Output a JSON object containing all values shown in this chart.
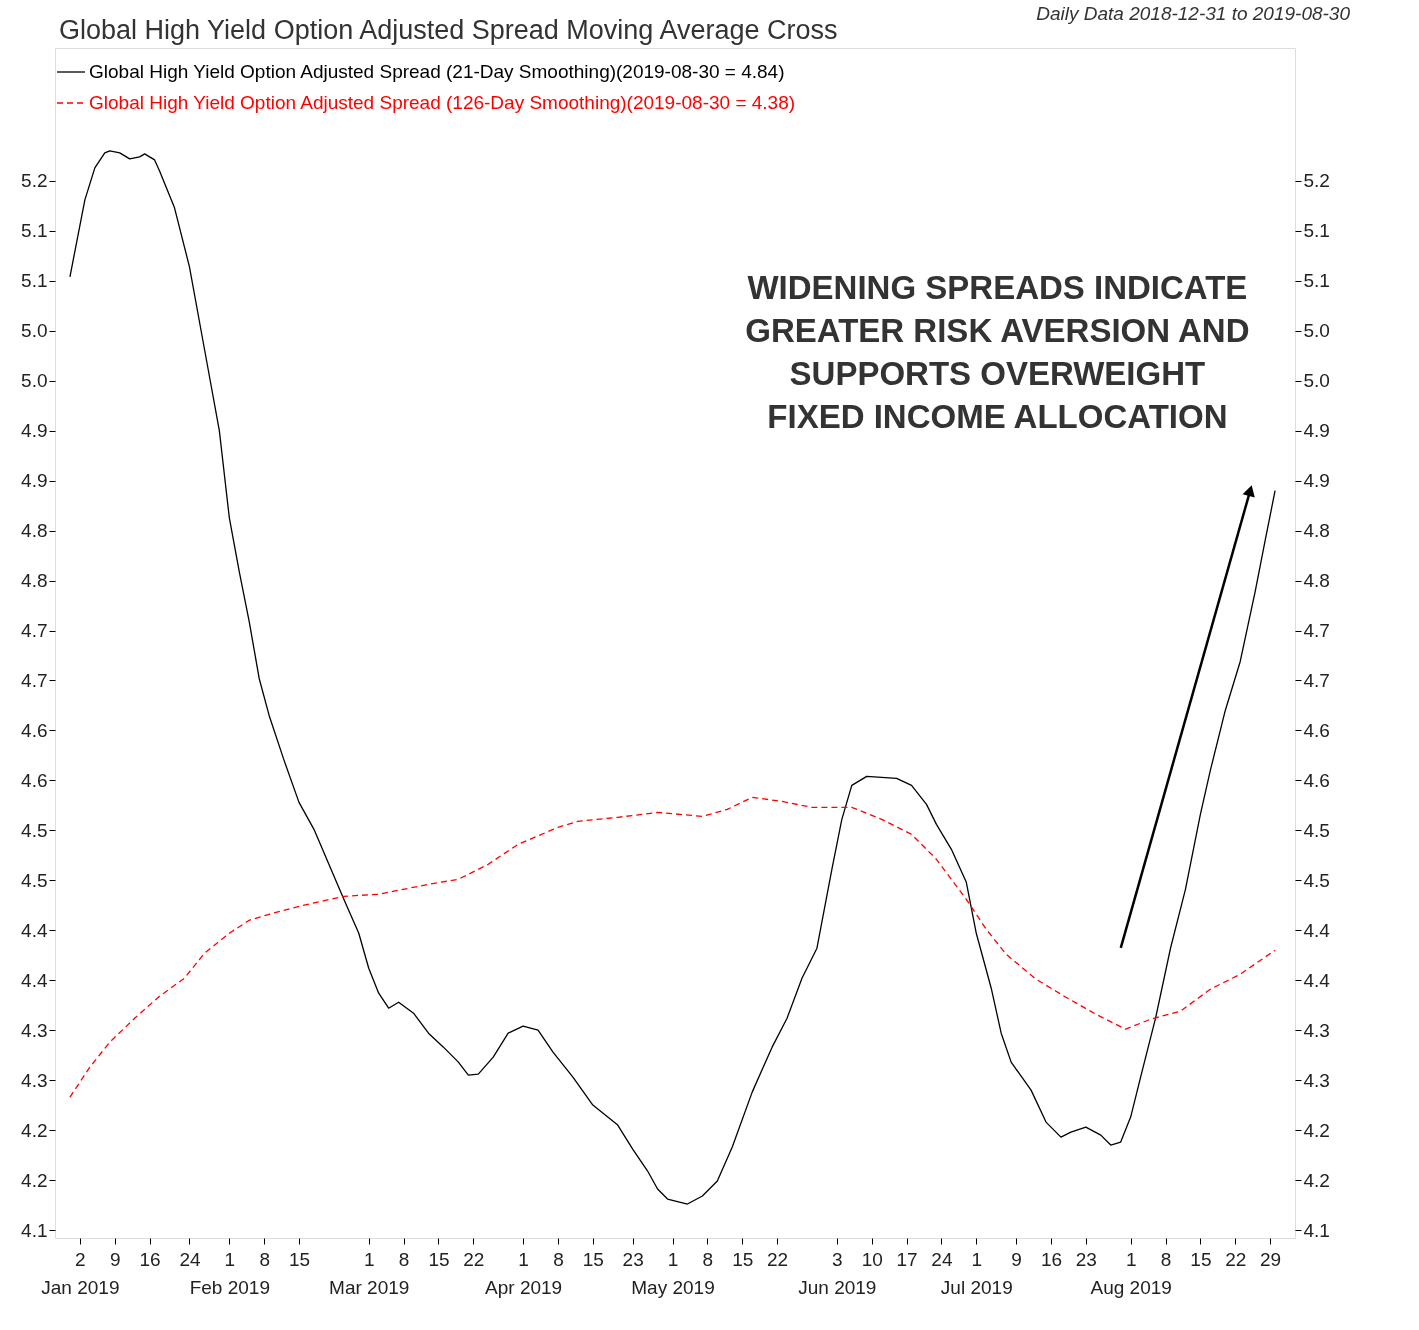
{
  "chart_data": {
    "type": "line",
    "title": "Global High Yield Option Adjusted Spread Moving Average Cross",
    "subtitle": "Daily Data 2018-12-31 to 2019-08-30",
    "xlim": [
      "2018-12-28",
      "2019-09-03"
    ],
    "ylim": [
      4.092,
      5.283
    ],
    "xticks": [
      {
        "value": "2019-01-02",
        "label": "2\nJan 2019"
      },
      {
        "value": "2019-01-09",
        "label": "9"
      },
      {
        "value": "2019-01-16",
        "label": "16"
      },
      {
        "value": "2019-01-24",
        "label": "24"
      },
      {
        "value": "2019-02-01",
        "label": "1\nFeb 2019"
      },
      {
        "value": "2019-02-08",
        "label": "8"
      },
      {
        "value": "2019-02-15",
        "label": "15"
      },
      {
        "value": "2019-03-01",
        "label": "1\nMar 2019"
      },
      {
        "value": "2019-03-08",
        "label": "8"
      },
      {
        "value": "2019-03-15",
        "label": "15"
      },
      {
        "value": "2019-03-22",
        "label": "22"
      },
      {
        "value": "2019-04-01",
        "label": "1\nApr 2019"
      },
      {
        "value": "2019-04-08",
        "label": "8"
      },
      {
        "value": "2019-04-15",
        "label": "15"
      },
      {
        "value": "2019-04-23",
        "label": "23"
      },
      {
        "value": "2019-05-01",
        "label": "1\nMay 2019"
      },
      {
        "value": "2019-05-08",
        "label": "8"
      },
      {
        "value": "2019-05-15",
        "label": "15"
      },
      {
        "value": "2019-05-22",
        "label": "22"
      },
      {
        "value": "2019-06-03",
        "label": "3\nJun 2019"
      },
      {
        "value": "2019-06-10",
        "label": "10"
      },
      {
        "value": "2019-06-17",
        "label": "17"
      },
      {
        "value": "2019-06-24",
        "label": "24"
      },
      {
        "value": "2019-07-01",
        "label": "1\nJul 2019"
      },
      {
        "value": "2019-07-09",
        "label": "9"
      },
      {
        "value": "2019-07-16",
        "label": "16"
      },
      {
        "value": "2019-07-23",
        "label": "23"
      },
      {
        "value": "2019-08-01",
        "label": "1\nAug 2019"
      },
      {
        "value": "2019-08-08",
        "label": "8"
      },
      {
        "value": "2019-08-15",
        "label": "15"
      },
      {
        "value": "2019-08-22",
        "label": "22"
      },
      {
        "value": "2019-08-29",
        "label": "29"
      }
    ],
    "yticks": [
      {
        "value": 4.1,
        "label": "4.1"
      },
      {
        "value": 4.15,
        "label": "4.2"
      },
      {
        "value": 4.2,
        "label": "4.2"
      },
      {
        "value": 4.25,
        "label": "4.3"
      },
      {
        "value": 4.3,
        "label": "4.3"
      },
      {
        "value": 4.35,
        "label": "4.4"
      },
      {
        "value": 4.4,
        "label": "4.4"
      },
      {
        "value": 4.45,
        "label": "4.5"
      },
      {
        "value": 4.5,
        "label": "4.5"
      },
      {
        "value": 4.55,
        "label": "4.6"
      },
      {
        "value": 4.6,
        "label": "4.6"
      },
      {
        "value": 4.65,
        "label": "4.7"
      },
      {
        "value": 4.7,
        "label": "4.7"
      },
      {
        "value": 4.75,
        "label": "4.8"
      },
      {
        "value": 4.8,
        "label": "4.8"
      },
      {
        "value": 4.85,
        "label": "4.9"
      },
      {
        "value": 4.9,
        "label": "4.9"
      },
      {
        "value": 4.95,
        "label": "5.0"
      },
      {
        "value": 5.0,
        "label": "5.0"
      },
      {
        "value": 5.05,
        "label": "5.1"
      },
      {
        "value": 5.1,
        "label": "5.1"
      },
      {
        "value": 5.15,
        "label": "5.2"
      }
    ],
    "grid": false,
    "legend": "top left",
    "annotations": [
      "WIDENING SPREADS INDICATE\nGREATER RISK AVERSION AND\nSUPPORTS OVERWEIGHT\nFIXED INCOME ALLOCATION"
    ],
    "series": [
      {
        "name": "Global High Yield Option Adjusted Spread (21-Day Smoothing)(2019-08-30 = 4.84)",
        "color": "#000000",
        "line_style": "solid",
        "x": [
          "2018-12-31",
          "2019-01-03",
          "2019-01-05",
          "2019-01-07",
          "2019-01-08",
          "2019-01-10",
          "2019-01-12",
          "2019-01-14",
          "2019-01-15",
          "2019-01-17",
          "2019-01-18",
          "2019-01-21",
          "2019-01-24",
          "2019-01-27",
          "2019-01-30",
          "2019-02-01",
          "2019-02-03",
          "2019-02-05",
          "2019-02-07",
          "2019-02-09",
          "2019-02-12",
          "2019-02-15",
          "2019-02-18",
          "2019-02-21",
          "2019-02-24",
          "2019-02-27",
          "2019-03-01",
          "2019-03-03",
          "2019-03-05",
          "2019-03-07",
          "2019-03-10",
          "2019-03-13",
          "2019-03-16",
          "2019-03-19",
          "2019-03-21",
          "2019-03-23",
          "2019-03-26",
          "2019-03-29",
          "2019-04-01",
          "2019-04-04",
          "2019-04-07",
          "2019-04-11",
          "2019-04-15",
          "2019-04-20",
          "2019-04-23",
          "2019-04-26",
          "2019-04-28",
          "2019-04-30",
          "2019-05-04",
          "2019-05-07",
          "2019-05-10",
          "2019-05-13",
          "2019-05-17",
          "2019-05-21",
          "2019-05-24",
          "2019-05-27",
          "2019-05-30",
          "2019-06-02",
          "2019-06-04",
          "2019-06-06",
          "2019-06-09",
          "2019-06-12",
          "2019-06-15",
          "2019-06-18",
          "2019-06-21",
          "2019-06-23",
          "2019-06-26",
          "2019-06-29",
          "2019-07-01",
          "2019-07-04",
          "2019-07-06",
          "2019-07-08",
          "2019-07-12",
          "2019-07-15",
          "2019-07-18",
          "2019-07-20",
          "2019-07-23",
          "2019-07-26",
          "2019-07-28",
          "2019-07-30",
          "2019-08-01",
          "2019-08-03",
          "2019-08-06",
          "2019-08-09",
          "2019-08-12",
          "2019-08-15",
          "2019-08-17",
          "2019-08-20",
          "2019-08-23",
          "2019-08-26",
          "2019-08-28",
          "2019-08-30"
        ],
        "values": [
          5.054,
          5.131,
          5.163,
          5.178,
          5.18,
          5.178,
          5.172,
          5.174,
          5.177,
          5.171,
          5.16,
          5.123,
          5.064,
          4.982,
          4.9,
          4.813,
          4.759,
          4.709,
          4.652,
          4.615,
          4.57,
          4.528,
          4.501,
          4.466,
          4.431,
          4.397,
          4.362,
          4.337,
          4.322,
          4.328,
          4.317,
          4.297,
          4.283,
          4.268,
          4.255,
          4.256,
          4.273,
          4.297,
          4.304,
          4.3,
          4.278,
          4.253,
          4.225,
          4.205,
          4.181,
          4.159,
          4.141,
          4.131,
          4.126,
          4.134,
          4.149,
          4.183,
          4.238,
          4.283,
          4.312,
          4.352,
          4.382,
          4.461,
          4.511,
          4.545,
          4.554,
          4.553,
          4.552,
          4.545,
          4.526,
          4.506,
          4.481,
          4.448,
          4.397,
          4.342,
          4.297,
          4.268,
          4.24,
          4.208,
          4.193,
          4.198,
          4.203,
          4.195,
          4.185,
          4.188,
          4.213,
          4.253,
          4.312,
          4.382,
          4.441,
          4.516,
          4.56,
          4.62,
          4.669,
          4.739,
          4.79,
          4.84
        ]
      },
      {
        "name": "Global High Yield Option Adjusted Spread (126-Day Smoothing)(2019-08-30 = 4.38)",
        "color": "#ff0000",
        "line_style": "dashed",
        "x": [
          "2018-12-31",
          "2019-01-04",
          "2019-01-08",
          "2019-01-13",
          "2019-01-18",
          "2019-01-23",
          "2019-01-27",
          "2019-02-01",
          "2019-02-05",
          "2019-02-09",
          "2019-02-15",
          "2019-02-24",
          "2019-03-03",
          "2019-03-13",
          "2019-03-19",
          "2019-03-25",
          "2019-03-31",
          "2019-04-08",
          "2019-04-12",
          "2019-04-20",
          "2019-04-28",
          "2019-05-07",
          "2019-05-12",
          "2019-05-17",
          "2019-05-23",
          "2019-05-29",
          "2019-06-06",
          "2019-06-12",
          "2019-06-18",
          "2019-06-23",
          "2019-06-29",
          "2019-07-03",
          "2019-07-07",
          "2019-07-13",
          "2019-07-19",
          "2019-07-25",
          "2019-07-31",
          "2019-08-05",
          "2019-08-11",
          "2019-08-17",
          "2019-08-23",
          "2019-08-30"
        ],
        "values": [
          4.233,
          4.263,
          4.288,
          4.312,
          4.334,
          4.352,
          4.377,
          4.397,
          4.41,
          4.416,
          4.424,
          4.434,
          4.436,
          4.446,
          4.451,
          4.466,
          4.486,
          4.503,
          4.509,
          4.513,
          4.518,
          4.514,
          4.521,
          4.533,
          4.529,
          4.523,
          4.523,
          4.511,
          4.496,
          4.471,
          4.431,
          4.401,
          4.376,
          4.351,
          4.333,
          4.316,
          4.301,
          4.311,
          4.319,
          4.341,
          4.356,
          4.38
        ]
      }
    ]
  }
}
